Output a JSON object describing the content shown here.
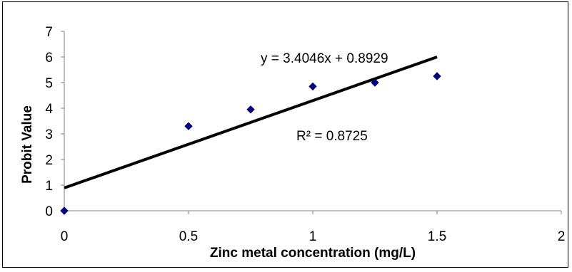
{
  "chart_data": {
    "type": "scatter",
    "xlabel": "Zinc metal concentration (mg/L)",
    "ylabel": "Probit Value",
    "xlim": [
      0,
      2
    ],
    "ylim": [
      0,
      7
    ],
    "x_ticks": [
      "0",
      "0.5",
      "1",
      "1.5",
      "2"
    ],
    "y_ticks": [
      "0",
      "1",
      "2",
      "3",
      "4",
      "5",
      "6",
      "7"
    ],
    "grid": false,
    "marker_color": "#00007F",
    "trendline_color": "#000000",
    "points": [
      {
        "x": 0,
        "y": 0
      },
      {
        "x": 0.5,
        "y": 3.3
      },
      {
        "x": 0.75,
        "y": 3.95
      },
      {
        "x": 1.0,
        "y": 4.85
      },
      {
        "x": 1.25,
        "y": 5.0
      },
      {
        "x": 1.5,
        "y": 5.25
      }
    ],
    "trendline": {
      "slope": 3.4046,
      "intercept": 0.8929,
      "x_range": [
        0,
        1.5
      ]
    },
    "equation_label": "y = 3.4046x + 0.8929",
    "r2_label": "R² = 0.8725"
  }
}
